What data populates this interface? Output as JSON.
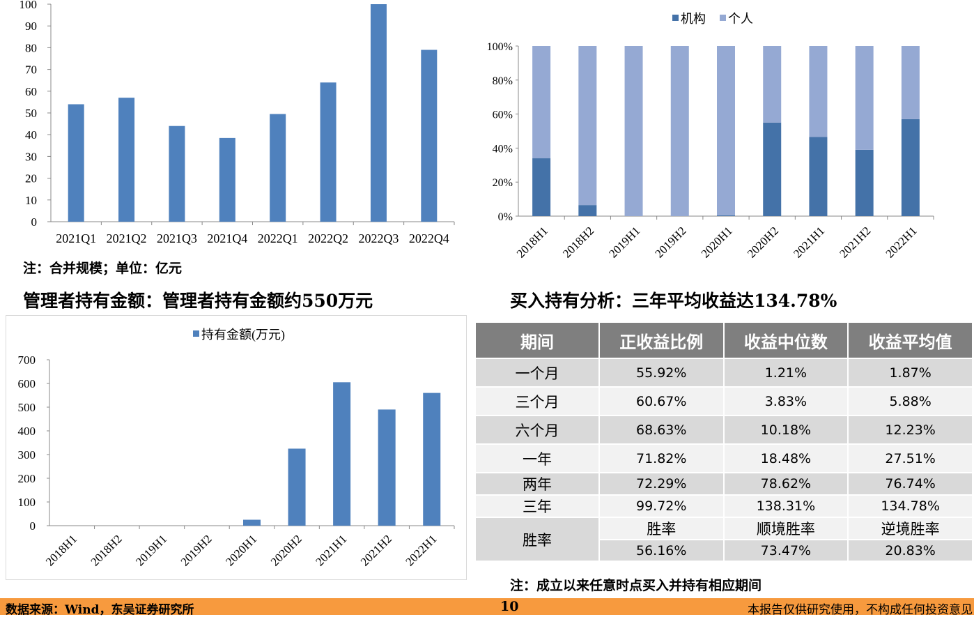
{
  "charts": {
    "chart_data": [
      {
        "type": "bar",
        "categories": [
          "2021Q1",
          "2021Q2",
          "2021Q3",
          "2021Q4",
          "2022Q1",
          "2022Q2",
          "2022Q3",
          "2022Q4"
        ],
        "values": [
          54,
          57,
          44,
          38.5,
          49.5,
          64,
          100,
          79
        ],
        "ylim": [
          0,
          100
        ],
        "yticks": [
          0,
          10,
          20,
          30,
          40,
          50,
          60,
          70,
          80,
          90,
          100
        ],
        "color": "#4f81bd",
        "title": "",
        "xlabel": "",
        "ylabel": ""
      },
      {
        "type": "bar",
        "stacked": true,
        "percent": true,
        "categories": [
          "2018H1",
          "2018H2",
          "2019H1",
          "2019H2",
          "2020H1",
          "2020H2",
          "2021H1",
          "2021H2",
          "2022H1"
        ],
        "series": [
          {
            "name": "机构",
            "values": [
              34,
              6.5,
              0,
              0,
              0.5,
              55,
              46.5,
              39,
              57
            ],
            "color": "#4472a8"
          },
          {
            "name": "个人",
            "values": [
              66,
              93.5,
              100,
              100,
              99.5,
              45,
              53.5,
              61,
              43
            ],
            "color": "#95a9d3"
          }
        ],
        "yticks": [
          "0%",
          "20%",
          "40%",
          "60%",
          "80%",
          "100%"
        ],
        "legend": "top",
        "title": "",
        "xlabel": "",
        "ylabel": ""
      },
      {
        "type": "bar",
        "categories": [
          "2018H1",
          "2018H2",
          "2019H1",
          "2019H2",
          "2020H1",
          "2020H2",
          "2021H1",
          "2021H2",
          "2022H1"
        ],
        "series": [
          {
            "name": "持有金额(万元)",
            "values": [
              0,
              0,
              0,
              0,
              25,
              325,
              605,
              490,
              560
            ],
            "color": "#4f81bd"
          }
        ],
        "ylim": [
          0,
          700
        ],
        "yticks": [
          0,
          100,
          200,
          300,
          400,
          500,
          600,
          700
        ],
        "legend": "top",
        "title": "",
        "xlabel": "",
        "ylabel": ""
      }
    ]
  },
  "notes": {
    "scale_note": "注：合并规模；单位：亿元",
    "holding_note": "注：成立以来任意时点买入并持有相应期间"
  },
  "titles": {
    "manager_title": "管理者持有金额：管理者持有金额约550万元",
    "buyhold_title": "买入持有分析：三年平均收益达134.78%"
  },
  "table": {
    "headers": [
      "期间",
      "正收益比例",
      "收益中位数",
      "收益平均值"
    ],
    "rows": [
      {
        "period": "一个月",
        "pos": "55.92%",
        "median": "1.21%",
        "mean": "1.87%"
      },
      {
        "period": "三个月",
        "pos": "60.67%",
        "median": "3.83%",
        "mean": "5.88%"
      },
      {
        "period": "六个月",
        "pos": "68.63%",
        "median": "10.18%",
        "mean": "12.23%"
      },
      {
        "period": "一年",
        "pos": "71.82%",
        "median": "18.48%",
        "mean": "27.51%"
      },
      {
        "period": "两年",
        "pos": "72.29%",
        "median": "78.62%",
        "mean": "76.74%"
      },
      {
        "period": "三年",
        "pos": "99.72%",
        "median": "138.31%",
        "mean": "134.78%"
      }
    ],
    "win": {
      "label": "胜率",
      "sub_headers": [
        "胜率",
        "顺境胜率",
        "逆境胜率"
      ],
      "values": [
        "56.16%",
        "73.47%",
        "20.83%"
      ]
    }
  },
  "footer": {
    "source": "数据来源：Wind，东吴证券研究所",
    "page": "10",
    "disclaimer": "本报告仅供研究使用，不构成任何投资意见"
  }
}
